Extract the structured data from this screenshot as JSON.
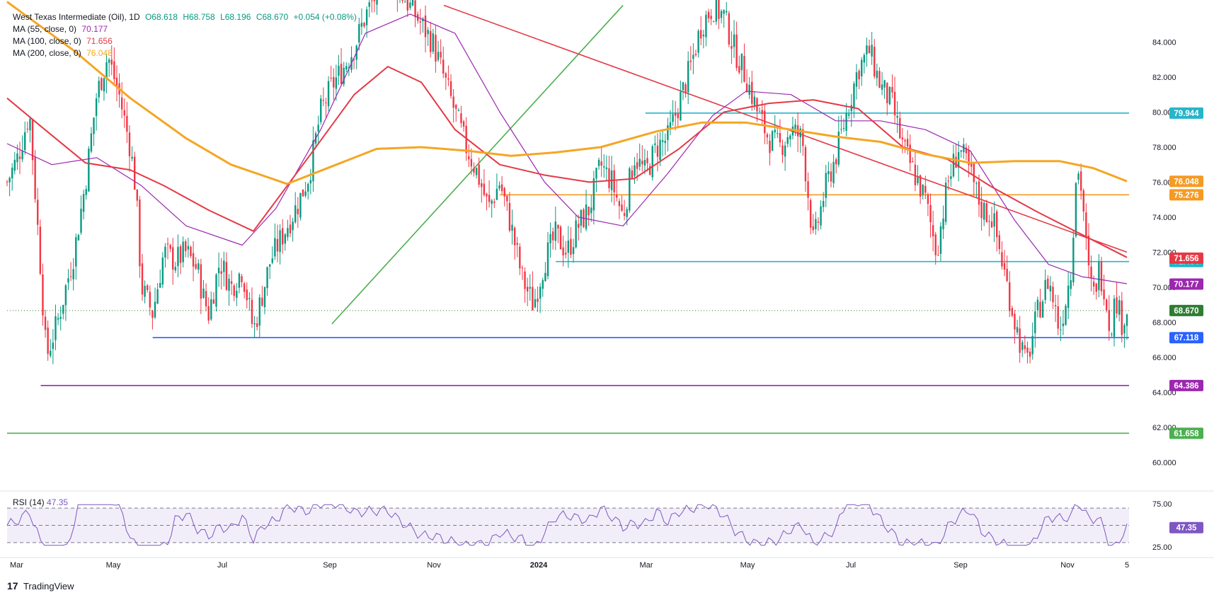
{
  "header": {
    "symbol": "West Texas Intermediate (Oil), 1D",
    "open": "O68.618",
    "high": "H68.758",
    "low": "L68.196",
    "close": "C68.670",
    "change": "+0.054 (+0.08%)"
  },
  "indicators": [
    {
      "label": "MA (55, close, 0)",
      "value": "70.177",
      "color": "#9c27b0"
    },
    {
      "label": "MA (100, close, 0)",
      "value": "71.656",
      "color": "#e53945"
    },
    {
      "label": "MA (200, close, 0)",
      "value": "76.048",
      "color": "#f5a623"
    }
  ],
  "rsi": {
    "label": "RSI (14)",
    "value": "47.35",
    "color": "#7e57c2"
  },
  "footer": {
    "logo": "17",
    "brand": "TradingView"
  },
  "chart_data": {
    "type": "candlestick",
    "x_ticks": [
      "Mar",
      "May",
      "Jul",
      "Sep",
      "Nov",
      "2024",
      "Mar",
      "May",
      "Jul",
      "Sep",
      "Nov",
      "5"
    ],
    "y_ticks": [
      "84.000",
      "82.000",
      "80.000",
      "78.000",
      "76.000",
      "74.000",
      "72.000",
      "70.000",
      "68.000",
      "66.000",
      "64.000",
      "62.000",
      "60.000"
    ],
    "ylim": [
      58.6,
      86.0
    ],
    "horizontal_levels": [
      {
        "value": 79.944,
        "label": "79.944",
        "color": "#26b5c9"
      },
      {
        "value": 75.276,
        "label": "75.276",
        "color": "#f59a23"
      },
      {
        "value": 71.464,
        "label": "71.464",
        "color": "#26b5c9"
      },
      {
        "value": 67.118,
        "label": "67.118",
        "color": "#2962ff"
      },
      {
        "value": 64.386,
        "label": "64.386",
        "color": "#9c27b0"
      },
      {
        "value": 61.658,
        "label": "61.658",
        "color": "#4caf50"
      }
    ],
    "price_tags": [
      {
        "value": 76.048,
        "label": "76.048",
        "color": "#f59a23"
      },
      {
        "value": 71.656,
        "label": "71.656",
        "color": "#e53945"
      },
      {
        "value": 70.177,
        "label": "70.177",
        "color": "#9c27b0"
      },
      {
        "value": 68.67,
        "label": "68.670",
        "color": "#2e7d32"
      }
    ],
    "trendlines": [
      {
        "name": "uptrend",
        "color": "#4caf50",
        "from": [
          0.29,
          67.9
        ],
        "to": [
          0.55,
          86.1
        ]
      },
      {
        "name": "downtrend",
        "color": "#e53945",
        "from": [
          0.39,
          86.1
        ],
        "to": [
          1.0,
          72.0
        ]
      }
    ],
    "ma_series": [
      {
        "name": "MA 55",
        "color": "#9c27b0",
        "points": [
          [
            0.0,
            78.2
          ],
          [
            0.04,
            77.0
          ],
          [
            0.08,
            77.4
          ],
          [
            0.12,
            75.8
          ],
          [
            0.16,
            73.5
          ],
          [
            0.21,
            72.4
          ],
          [
            0.24,
            74.5
          ],
          [
            0.28,
            79.0
          ],
          [
            0.32,
            84.5
          ],
          [
            0.36,
            85.6
          ],
          [
            0.4,
            84.5
          ],
          [
            0.44,
            80.0
          ],
          [
            0.48,
            76.0
          ],
          [
            0.51,
            74.0
          ],
          [
            0.55,
            73.5
          ],
          [
            0.59,
            76.5
          ],
          [
            0.63,
            79.8
          ],
          [
            0.66,
            81.2
          ],
          [
            0.7,
            81.0
          ],
          [
            0.74,
            79.5
          ],
          [
            0.78,
            79.5
          ],
          [
            0.82,
            79.0
          ],
          [
            0.86,
            77.8
          ],
          [
            0.9,
            73.8
          ],
          [
            0.93,
            71.3
          ],
          [
            0.96,
            70.6
          ],
          [
            0.98,
            70.4
          ],
          [
            1.0,
            70.2
          ]
        ]
      },
      {
        "name": "MA 100",
        "color": "#e53945",
        "points": [
          [
            0.0,
            80.8
          ],
          [
            0.03,
            79.2
          ],
          [
            0.07,
            77.1
          ],
          [
            0.11,
            76.7
          ],
          [
            0.14,
            75.8
          ],
          [
            0.18,
            74.4
          ],
          [
            0.22,
            73.2
          ],
          [
            0.27,
            77.5
          ],
          [
            0.31,
            81.0
          ],
          [
            0.34,
            82.6
          ],
          [
            0.37,
            81.7
          ],
          [
            0.4,
            79.0
          ],
          [
            0.44,
            77.0
          ],
          [
            0.48,
            76.4
          ],
          [
            0.52,
            76.0
          ],
          [
            0.56,
            76.2
          ],
          [
            0.6,
            77.9
          ],
          [
            0.64,
            80.0
          ],
          [
            0.68,
            80.5
          ],
          [
            0.72,
            80.7
          ],
          [
            0.76,
            80.2
          ],
          [
            0.8,
            78.0
          ],
          [
            0.84,
            77.3
          ],
          [
            0.88,
            75.7
          ],
          [
            0.92,
            74.3
          ],
          [
            0.96,
            73.0
          ],
          [
            1.0,
            71.7
          ]
        ]
      },
      {
        "name": "MA 200",
        "color": "#f5a623",
        "points": [
          [
            0.0,
            86.3
          ],
          [
            0.06,
            83.5
          ],
          [
            0.11,
            80.8
          ],
          [
            0.16,
            78.5
          ],
          [
            0.2,
            77.0
          ],
          [
            0.25,
            75.9
          ],
          [
            0.29,
            76.9
          ],
          [
            0.33,
            77.9
          ],
          [
            0.37,
            78.0
          ],
          [
            0.41,
            77.8
          ],
          [
            0.45,
            77.5
          ],
          [
            0.49,
            77.7
          ],
          [
            0.53,
            78.0
          ],
          [
            0.58,
            78.9
          ],
          [
            0.62,
            79.4
          ],
          [
            0.66,
            79.4
          ],
          [
            0.7,
            79.0
          ],
          [
            0.74,
            78.6
          ],
          [
            0.78,
            78.3
          ],
          [
            0.82,
            77.6
          ],
          [
            0.86,
            77.1
          ],
          [
            0.9,
            77.2
          ],
          [
            0.94,
            77.2
          ],
          [
            0.97,
            76.8
          ],
          [
            1.0,
            76.05
          ]
        ]
      }
    ],
    "price_path": [
      [
        0.0,
        76.0
      ],
      [
        0.01,
        77.5
      ],
      [
        0.02,
        80.0
      ],
      [
        0.03,
        71.0
      ],
      [
        0.035,
        66.0
      ],
      [
        0.045,
        68.0
      ],
      [
        0.06,
        72.0
      ],
      [
        0.07,
        76.0
      ],
      [
        0.08,
        81.0
      ],
      [
        0.09,
        83.2
      ],
      [
        0.1,
        81.0
      ],
      [
        0.11,
        78.0
      ],
      [
        0.115,
        75.5
      ],
      [
        0.12,
        70.0
      ],
      [
        0.13,
        68.5
      ],
      [
        0.14,
        72.0
      ],
      [
        0.15,
        71.5
      ],
      [
        0.16,
        72.0
      ],
      [
        0.17,
        71.0
      ],
      [
        0.175,
        69.5
      ],
      [
        0.18,
        68.5
      ],
      [
        0.19,
        71.5
      ],
      [
        0.2,
        70.0
      ],
      [
        0.21,
        71.0
      ],
      [
        0.22,
        67.5
      ],
      [
        0.235,
        71.5
      ],
      [
        0.25,
        73.5
      ],
      [
        0.26,
        74.8
      ],
      [
        0.27,
        76.5
      ],
      [
        0.28,
        80.0
      ],
      [
        0.29,
        81.5
      ],
      [
        0.3,
        82.5
      ],
      [
        0.31,
        83.7
      ],
      [
        0.32,
        85.5
      ],
      [
        0.34,
        88.0
      ],
      [
        0.36,
        86.0
      ],
      [
        0.38,
        84.0
      ],
      [
        0.39,
        82.0
      ],
      [
        0.4,
        80.0
      ],
      [
        0.41,
        78.0
      ],
      [
        0.42,
        76.5
      ],
      [
        0.43,
        74.5
      ],
      [
        0.44,
        76.0
      ],
      [
        0.45,
        73.5
      ],
      [
        0.46,
        70.5
      ],
      [
        0.47,
        69.0
      ],
      [
        0.48,
        71.5
      ],
      [
        0.49,
        73.0
      ],
      [
        0.5,
        72.0
      ],
      [
        0.51,
        73.5
      ],
      [
        0.52,
        74.5
      ],
      [
        0.53,
        77.0
      ],
      [
        0.54,
        76.0
      ],
      [
        0.55,
        74.0
      ],
      [
        0.56,
        77.5
      ],
      [
        0.57,
        76.5
      ],
      [
        0.58,
        78.0
      ],
      [
        0.59,
        78.5
      ],
      [
        0.6,
        80.5
      ],
      [
        0.61,
        82.5
      ],
      [
        0.62,
        85.0
      ],
      [
        0.63,
        86.0
      ],
      [
        0.64,
        85.5
      ],
      [
        0.65,
        83.5
      ],
      [
        0.66,
        82.0
      ],
      [
        0.67,
        80.0
      ],
      [
        0.68,
        78.5
      ],
      [
        0.69,
        78.0
      ],
      [
        0.7,
        79.0
      ],
      [
        0.71,
        78.5
      ],
      [
        0.72,
        72.5
      ],
      [
        0.73,
        75.5
      ],
      [
        0.74,
        77.5
      ],
      [
        0.75,
        80.0
      ],
      [
        0.76,
        82.5
      ],
      [
        0.77,
        83.5
      ],
      [
        0.78,
        81.5
      ],
      [
        0.79,
        80.5
      ],
      [
        0.8,
        78.0
      ],
      [
        0.81,
        76.5
      ],
      [
        0.82,
        75.0
      ],
      [
        0.83,
        72.0
      ],
      [
        0.84,
        76.0
      ],
      [
        0.85,
        78.0
      ],
      [
        0.86,
        76.5
      ],
      [
        0.87,
        74.5
      ],
      [
        0.88,
        74.0
      ],
      [
        0.89,
        71.0
      ],
      [
        0.9,
        68.0
      ],
      [
        0.91,
        65.5
      ],
      [
        0.92,
        68.5
      ],
      [
        0.93,
        70.5
      ],
      [
        0.94,
        67.5
      ],
      [
        0.95,
        71.0
      ],
      [
        0.955,
        77.0
      ],
      [
        0.96,
        75.5
      ],
      [
        0.965,
        71.0
      ],
      [
        0.97,
        69.5
      ],
      [
        0.975,
        71.0
      ],
      [
        0.98,
        70.0
      ],
      [
        0.985,
        67.5
      ],
      [
        0.99,
        69.5
      ],
      [
        0.995,
        68.0
      ],
      [
        1.0,
        68.67
      ]
    ],
    "rsi_ticks": [
      "75.00",
      "25.00"
    ],
    "rsi_levels": [
      70,
      50,
      30
    ]
  }
}
